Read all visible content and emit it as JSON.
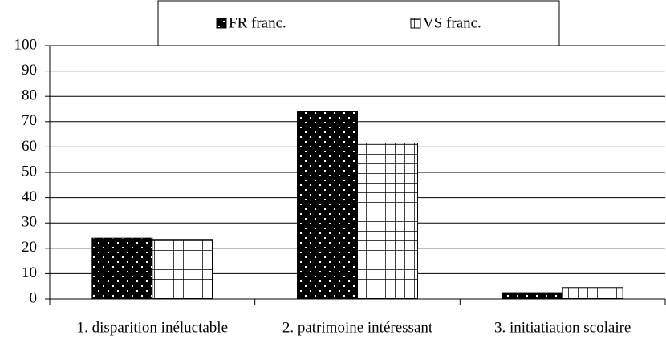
{
  "chart_data": {
    "type": "bar",
    "categories": [
      "1. disparition inéluctable",
      "2. patrimoine intéressant",
      "3. initiatiation scolaire"
    ],
    "series": [
      {
        "name": "FR franc.",
        "color": "#000000",
        "values": [
          24,
          74,
          2.5
        ]
      },
      {
        "name": "VS franc.",
        "color": "#ffffff",
        "values": [
          23.5,
          61.5,
          4.5
        ]
      }
    ],
    "ylim": [
      0,
      100
    ],
    "yticks": [
      0,
      10,
      20,
      30,
      40,
      50,
      60,
      70,
      80,
      90,
      100
    ],
    "grid": true,
    "legend": "top"
  }
}
